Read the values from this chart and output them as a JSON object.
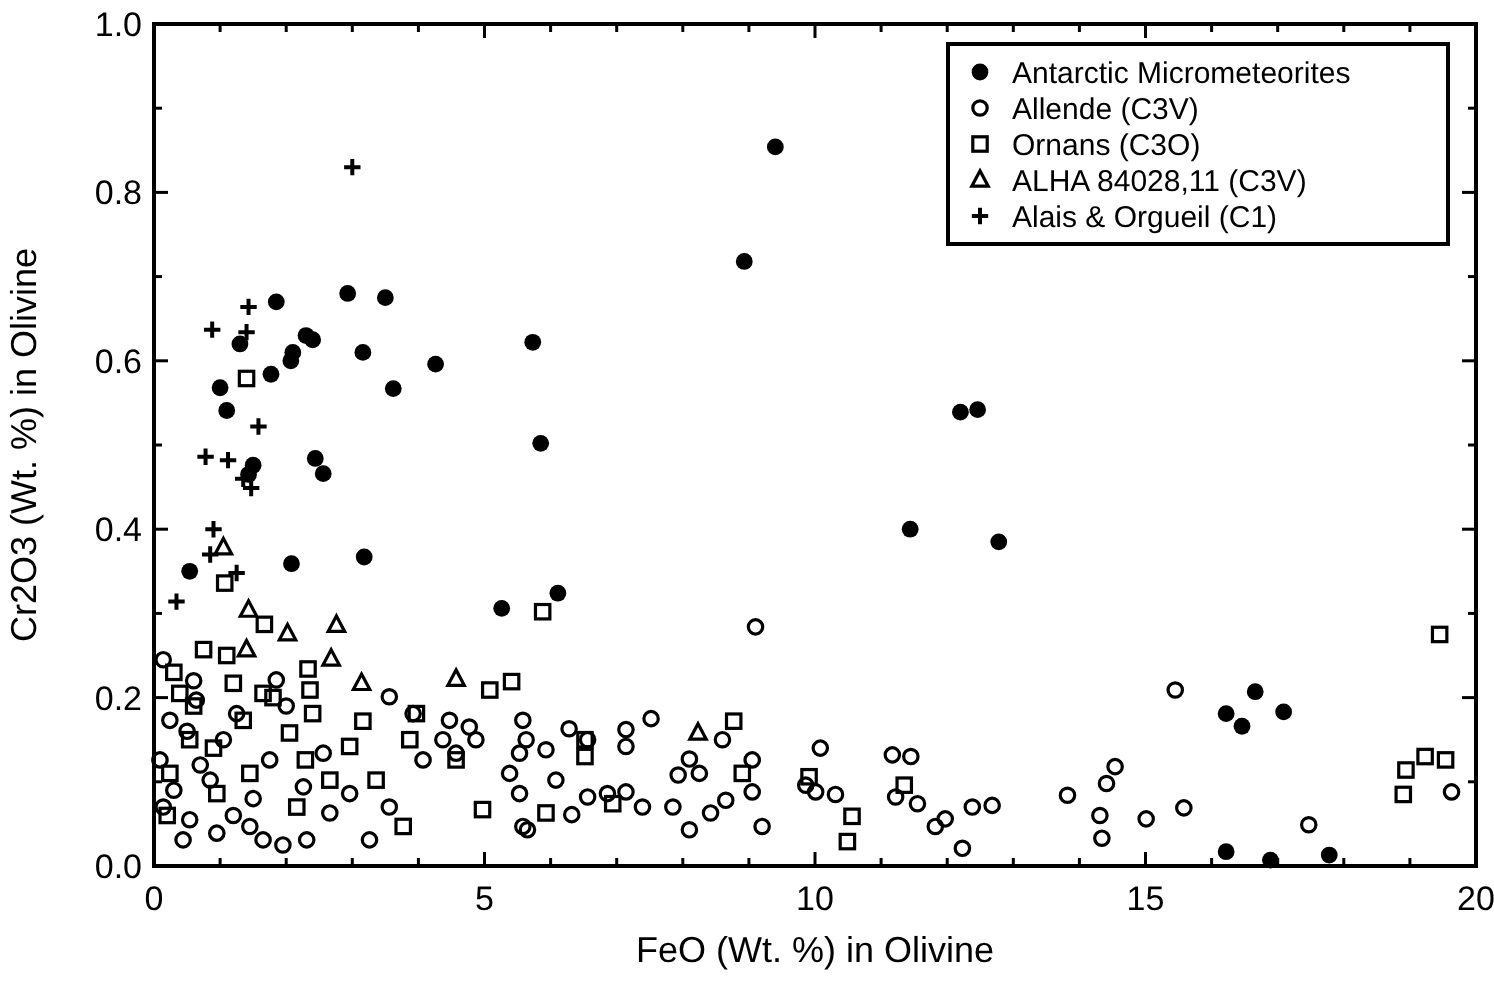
{
  "chart_data": {
    "type": "scatter",
    "xlabel": "FeO  (Wt. %) in Olivine",
    "ylabel": "Cr2O3 (Wt. %) in Olivine",
    "xlim": [
      0,
      20
    ],
    "ylim": [
      0,
      1
    ],
    "xticks": [
      0,
      {
        "value": 1,
        "label": null
      },
      {
        "value": 2,
        "label": null
      },
      {
        "value": 3,
        "label": null
      },
      {
        "value": 4,
        "label": null
      },
      5,
      {
        "value": 6,
        "label": null
      },
      {
        "value": 7,
        "label": null
      },
      {
        "value": 8,
        "label": null
      },
      {
        "value": 9,
        "label": null
      },
      10,
      {
        "value": 11,
        "label": null
      },
      {
        "value": 12,
        "label": null
      },
      {
        "value": 13,
        "label": null
      },
      {
        "value": 14,
        "label": null
      },
      15,
      {
        "value": 16,
        "label": null
      },
      {
        "value": 17,
        "label": null
      },
      {
        "value": 18,
        "label": null
      },
      {
        "value": 19,
        "label": null
      },
      20
    ],
    "yticks": [
      {
        "value": 0,
        "label": "0.0"
      },
      {
        "value": 0.1,
        "label": null
      },
      0.2,
      {
        "value": 0.3,
        "label": null
      },
      0.4,
      {
        "value": 0.5,
        "label": null
      },
      0.6,
      {
        "value": 0.7,
        "label": null
      },
      0.8,
      {
        "value": 0.9,
        "label": null
      },
      {
        "value": 1,
        "label": "1.0"
      }
    ],
    "grid": false,
    "legend": "top right",
    "series": [
      {
        "name": "Antarctic Micrometeorites",
        "color": "#000000",
        "marker": "filled-circle",
        "x": [
          1.85,
          2.93,
          3.5,
          1.3,
          2.1,
          2.3,
          2.4,
          2.07,
          3.16,
          4.26,
          5.73,
          1.77,
          3.62,
          1.0,
          1.1,
          5.85,
          1.5,
          1.43,
          2.44,
          2.56,
          0.54,
          2.08,
          3.18,
          5.26,
          9.4,
          8.93,
          12.2,
          12.46,
          11.44,
          12.78,
          6.11,
          16.22,
          16.46,
          16.66,
          17.09,
          16.22,
          16.89,
          17.78
        ],
        "values": [
          0.67,
          0.68,
          0.675,
          0.62,
          0.61,
          0.63,
          0.625,
          0.6,
          0.61,
          0.596,
          0.622,
          0.584,
          0.567,
          0.568,
          0.541,
          0.502,
          0.476,
          0.465,
          0.484,
          0.466,
          0.35,
          0.359,
          0.367,
          0.306,
          0.854,
          0.718,
          0.539,
          0.542,
          0.4,
          0.385,
          0.324,
          0.181,
          0.166,
          0.207,
          0.183,
          0.017,
          0.007,
          0.013
        ]
      },
      {
        "name": "Allende (C3V)",
        "color": "#000000",
        "marker": "circle",
        "x": [
          3.56,
          3.92,
          4.47,
          4.77,
          4.87,
          4.57,
          4.07,
          5.58,
          5.63,
          5.53,
          5.38,
          5.53,
          5.58,
          3.26,
          2.31,
          1.95,
          1.65,
          1.45,
          0.44,
          0.14,
          0.09,
          0.24,
          0.64,
          1.05,
          1.75,
          2.56,
          2.96,
          3.56,
          4.37,
          0.14,
          0.54,
          0.95,
          2.66,
          2.26,
          0.85,
          1.25,
          1.85,
          0.3,
          0.5,
          0.7,
          1.5,
          2.0,
          1.2,
          0.6,
          9.1,
          6.28,
          6.56,
          5.93,
          6.08,
          7.14,
          7.14,
          7.52,
          6.56,
          6.86,
          7.14,
          7.39,
          6.32,
          7.85,
          8.1,
          8.42,
          7.93,
          8.1,
          8.25,
          8.6,
          8.65,
          9.05,
          9.05,
          9.2,
          10.08,
          9.86,
          10.01,
          10.31,
          11.17,
          11.45,
          11.22,
          11.55,
          11.82,
          11.97,
          12.23,
          12.38,
          12.68,
          5.65,
          15.45,
          13.82,
          14.31,
          14.34,
          14.41,
          14.54,
          15.01,
          15.58,
          17.47,
          19.63
        ],
        "values": [
          0.201,
          0.181,
          0.173,
          0.165,
          0.15,
          0.134,
          0.126,
          0.173,
          0.15,
          0.134,
          0.11,
          0.086,
          0.047,
          0.031,
          0.031,
          0.025,
          0.031,
          0.047,
          0.031,
          0.07,
          0.126,
          0.173,
          0.197,
          0.15,
          0.126,
          0.134,
          0.086,
          0.07,
          0.15,
          0.245,
          0.055,
          0.039,
          0.063,
          0.094,
          0.102,
          0.181,
          0.221,
          0.09,
          0.16,
          0.12,
          0.08,
          0.19,
          0.06,
          0.22,
          0.284,
          0.163,
          0.15,
          0.138,
          0.102,
          0.162,
          0.142,
          0.175,
          0.082,
          0.086,
          0.088,
          0.07,
          0.061,
          0.07,
          0.043,
          0.063,
          0.108,
          0.127,
          0.11,
          0.15,
          0.078,
          0.126,
          0.088,
          0.047,
          0.14,
          0.096,
          0.088,
          0.085,
          0.132,
          0.13,
          0.082,
          0.074,
          0.047,
          0.056,
          0.021,
          0.07,
          0.072,
          0.043,
          0.209,
          0.084,
          0.06,
          0.033,
          0.098,
          0.118,
          0.056,
          0.069,
          0.049,
          0.088
        ]
      },
      {
        "name": "Ornans (C3O)",
        "color": "#000000",
        "marker": "square",
        "x": [
          1.4,
          1.07,
          1.67,
          2.33,
          2.36,
          3.16,
          5.08,
          5.41,
          5.88,
          4.97,
          2.29,
          1.2,
          0.39,
          1.35,
          0.75,
          2.05,
          2.4,
          2.96,
          3.36,
          3.87,
          3.97,
          2.16,
          3.77,
          0.95,
          0.54,
          1.65,
          0.24,
          1.45,
          2.66,
          4.57,
          0.3,
          0.6,
          0.9,
          1.8,
          0.2,
          1.1,
          8.77,
          6.52,
          6.52,
          5.93,
          6.94,
          8.9,
          9.91,
          10.56,
          10.49,
          11.35,
          19.45,
          18.9,
          18.94,
          19.23,
          19.54
        ],
        "values": [
          0.579,
          0.336,
          0.287,
          0.234,
          0.209,
          0.172,
          0.209,
          0.219,
          0.302,
          0.067,
          0.126,
          0.217,
          0.205,
          0.173,
          0.257,
          0.158,
          0.181,
          0.142,
          0.102,
          0.15,
          0.181,
          0.07,
          0.047,
          0.086,
          0.15,
          0.205,
          0.11,
          0.11,
          0.102,
          0.126,
          0.23,
          0.19,
          0.14,
          0.2,
          0.06,
          0.25,
          0.172,
          0.15,
          0.13,
          0.063,
          0.074,
          0.11,
          0.106,
          0.059,
          0.029,
          0.096,
          0.275,
          0.085,
          0.114,
          0.13,
          0.126
        ]
      },
      {
        "name": "ALHA 84028,11 (C3V)",
        "color": "#000000",
        "marker": "triangle",
        "x": [
          1.43,
          2.02,
          2.76,
          2.68,
          3.14,
          4.57,
          1.4,
          1.05,
          8.23
        ],
        "values": [
          0.304,
          0.276,
          0.286,
          0.246,
          0.217,
          0.222,
          0.257,
          0.378,
          0.158
        ]
      },
      {
        "name": "Alais & Orgueil (C1)",
        "color": "#000000",
        "marker": "cross",
        "x": [
          1.43,
          0.88,
          1.4,
          1.58,
          0.78,
          1.12,
          1.35,
          1.47,
          0.9,
          0.85,
          1.25,
          0.34,
          3.0
        ],
        "values": [
          0.664,
          0.637,
          0.634,
          0.522,
          0.486,
          0.482,
          0.46,
          0.449,
          0.4,
          0.37,
          0.348,
          0.314,
          0.83
        ]
      }
    ]
  }
}
